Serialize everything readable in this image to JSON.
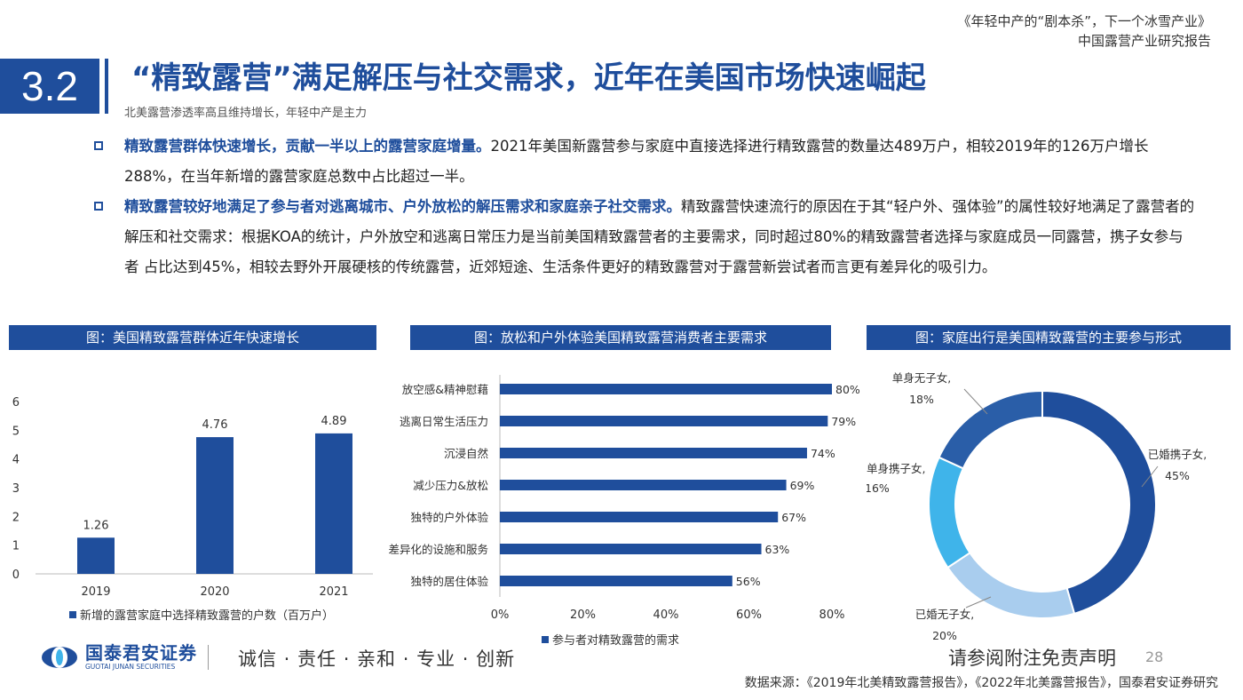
{
  "header": {
    "report_title": "《年轻中产的“剧本杀”，下一个冰雪产业》",
    "report_subtitle": "中国露营产业研究报告"
  },
  "section": {
    "number": "3.2",
    "title": "“精致露营”满足解压与社交需求，近年在美国市场快速崛起",
    "subtitle": "北美露营渗透率高且维持增长，年轻中产是主力"
  },
  "bullets": [
    {
      "highlight": "精致露营群体快速增长，贡献一半以上的露营家庭增量。",
      "body": "2021年美国新露营参与家庭中直接选择进行精致露营的数量达489万户，相较2019年的126万户增长288%，在当年新增的露营家庭总数中占比超过一半。"
    },
    {
      "highlight": "精致露营较好地满足了参与者对逃离城市、户外放松的解压需求和家庭亲子社交需求。",
      "body": "精致露营快速流行的原因在于其“轻户外、强体验”的属性较好地满足了露营者的解压和社交需求：根据KOA的统计，户外放空和逃离日常压力是当前美国精致露营者的主要需求，同时超过80%的精致露营者选择与家庭成员一同露营，携子女参与者 占比达到45%，相较去野外开展硬核的传统露营，近郊短途、生活条件更好的精致露营对于露营新尝试者而言更有差异化的吸引力。"
    }
  ],
  "charts_headers": {
    "left": "图：美国精致露营群体近年快速增长",
    "middle": "图：放松和户外体验美国精致露营消费者主要需求",
    "right": "图：家庭出行是美国精致露营的主要参与形式"
  },
  "chart_data": [
    {
      "type": "bar",
      "categories": [
        "2019",
        "2020",
        "2021"
      ],
      "values": [
        1.26,
        4.76,
        4.89
      ],
      "value_labels": [
        "1.26",
        "4.76",
        "4.89"
      ],
      "y_ticks": [
        "0",
        "1",
        "2",
        "3",
        "4",
        "5",
        "6"
      ],
      "ylim": [
        0,
        6
      ],
      "series": [
        {
          "name": "新增的露营家庭中选择精致露营的户数（百万户）",
          "values": [
            1.26,
            4.76,
            4.89
          ]
        }
      ],
      "legend": "bottom",
      "color": "#1f4e9c"
    },
    {
      "type": "bar",
      "orientation": "horizontal",
      "categories": [
        "放空感&精神慰藉",
        "逃离日常生活压力",
        "沉浸自然",
        "减少压力&放松",
        "独特的户外体验",
        "差异化的设施和服务",
        "独特的居住体验"
      ],
      "values": [
        80,
        79,
        74,
        69,
        67,
        63,
        56
      ],
      "value_labels": [
        "80%",
        "79%",
        "74%",
        "69%",
        "67%",
        "63%",
        "56%"
      ],
      "x_ticks": [
        "0%",
        "20%",
        "40%",
        "60%",
        "80%"
      ],
      "xlim": [
        0,
        80
      ],
      "series": [
        {
          "name": "参与者对精致露营的需求",
          "values": [
            80,
            79,
            74,
            69,
            67,
            63,
            56
          ]
        }
      ],
      "legend": "bottom",
      "color": "#1f4e9c"
    },
    {
      "type": "pie",
      "style": "donut",
      "slices": [
        {
          "label": "已婚携子女,",
          "pct_label": "45%",
          "value": 45,
          "color": "#1f4e9c"
        },
        {
          "label": "已婚无子女,",
          "pct_label": "20%",
          "value": 20,
          "color": "#a9cdee"
        },
        {
          "label": "单身携子女,",
          "pct_label": "16%",
          "value": 16,
          "color": "#3fb4ea"
        },
        {
          "label": "单身无子女,",
          "pct_label": "18%",
          "value": 18,
          "color": "#2a5ea8"
        }
      ]
    }
  ],
  "footer": {
    "brand_cn": "国泰君安证券",
    "brand_en": "GUOTAI JUNAN SECURITIES",
    "motto": "诚信 · 责任 · 亲和 · 专业 · 创新",
    "disclaimer": "请参阅附注免责声明",
    "page": "28",
    "source": "数据来源：《2019年北美精致露营报告》，《2022年北美露营报告》，国泰君安证券研究"
  },
  "colors": {
    "primary": "#1f4e9c",
    "light_blue": "#a9cdee",
    "cyan": "#3fb4ea"
  }
}
